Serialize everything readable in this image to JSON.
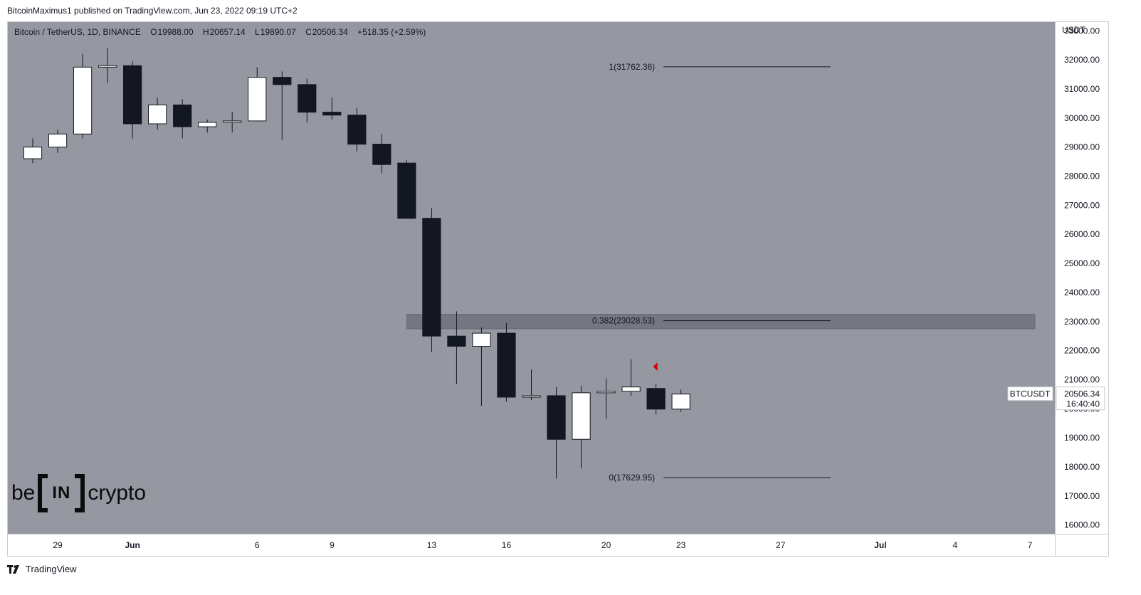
{
  "header": {
    "published_text": "BitcoinMaximus1 published on TradingView.com, Jun 23, 2022 09:19 UTC+2"
  },
  "legend": {
    "symbol": "Bitcoin / TetherUS, 1D, BINANCE",
    "o_label": "O",
    "o_value": "19988.00",
    "h_label": "H",
    "h_value": "20657.14",
    "l_label": "L",
    "l_value": "19890.07",
    "c_label": "C",
    "c_value": "20506.34",
    "change": "+518.35 (+2.59%)"
  },
  "footer": {
    "brand": "TradingView"
  },
  "watermark": {
    "left": "be",
    "middle": "IN",
    "right": "crypto"
  },
  "colors": {
    "plot_bg": "#9598a1",
    "bull": "#ffffff",
    "bear": "#131722",
    "zone": "#6f727c",
    "marker": "#d50000"
  },
  "chart_data": {
    "type": "candlestick",
    "title": "Bitcoin / TetherUS, 1D, BINANCE",
    "currency_label": "USDT",
    "ylim": [
      15700,
      33300
    ],
    "y_ticks": [
      16000,
      17000,
      18000,
      19000,
      20000,
      21000,
      22000,
      23000,
      24000,
      25000,
      26000,
      27000,
      28000,
      29000,
      30000,
      31000,
      32000,
      33000
    ],
    "y_tick_labels": [
      "16000.00",
      "17000.00",
      "18000.00",
      "19000.00",
      "20000.00",
      "21000.00",
      "22000.00",
      "23000.00",
      "24000.00",
      "25000.00",
      "26000.00",
      "27000.00",
      "28000.00",
      "29000.00",
      "30000.00",
      "31000.00",
      "32000.00",
      "33000.00"
    ],
    "x_ticks": [
      {
        "date": "2022-05-29",
        "label": "29"
      },
      {
        "date": "2022-06-01",
        "label": "Jun"
      },
      {
        "date": "2022-06-06",
        "label": "6"
      },
      {
        "date": "2022-06-09",
        "label": "9"
      },
      {
        "date": "2022-06-13",
        "label": "13"
      },
      {
        "date": "2022-06-16",
        "label": "16"
      },
      {
        "date": "2022-06-20",
        "label": "20"
      },
      {
        "date": "2022-06-23",
        "label": "23"
      },
      {
        "date": "2022-06-27",
        "label": "27"
      },
      {
        "date": "2022-07-01",
        "label": "Jul"
      },
      {
        "date": "2022-07-04",
        "label": "4"
      },
      {
        "date": "2022-07-07",
        "label": "7"
      }
    ],
    "x_range": [
      "2022-05-27",
      "2022-07-08"
    ],
    "candles": [
      {
        "date": "2022-05-28",
        "open": 28600,
        "high": 29300,
        "low": 28450,
        "close": 29000
      },
      {
        "date": "2022-05-29",
        "open": 29000,
        "high": 29600,
        "low": 28800,
        "close": 29450
      },
      {
        "date": "2022-05-30",
        "open": 29450,
        "high": 32200,
        "low": 29300,
        "close": 31750
      },
      {
        "date": "2022-05-31",
        "open": 31750,
        "high": 32400,
        "low": 31200,
        "close": 31800
      },
      {
        "date": "2022-06-01",
        "open": 31800,
        "high": 31950,
        "low": 29300,
        "close": 29800
      },
      {
        "date": "2022-06-02",
        "open": 29800,
        "high": 30700,
        "low": 29600,
        "close": 30450
      },
      {
        "date": "2022-06-03",
        "open": 30450,
        "high": 30650,
        "low": 29300,
        "close": 29700
      },
      {
        "date": "2022-06-04",
        "open": 29700,
        "high": 29950,
        "low": 29500,
        "close": 29850
      },
      {
        "date": "2022-06-05",
        "open": 29850,
        "high": 30200,
        "low": 29500,
        "close": 29900
      },
      {
        "date": "2022-06-06",
        "open": 29900,
        "high": 31750,
        "low": 29900,
        "close": 31400
      },
      {
        "date": "2022-06-07",
        "open": 31400,
        "high": 31600,
        "low": 29250,
        "close": 31150
      },
      {
        "date": "2022-06-08",
        "open": 31150,
        "high": 31350,
        "low": 29850,
        "close": 30200
      },
      {
        "date": "2022-06-09",
        "open": 30200,
        "high": 30700,
        "low": 29950,
        "close": 30100
      },
      {
        "date": "2022-06-10",
        "open": 30100,
        "high": 30350,
        "low": 28850,
        "close": 29100
      },
      {
        "date": "2022-06-11",
        "open": 29100,
        "high": 29450,
        "low": 28100,
        "close": 28400
      },
      {
        "date": "2022-06-12",
        "open": 28450,
        "high": 28550,
        "low": 26550,
        "close": 26550
      },
      {
        "date": "2022-06-13",
        "open": 26550,
        "high": 26900,
        "low": 21950,
        "close": 22500
      },
      {
        "date": "2022-06-14",
        "open": 22500,
        "high": 23350,
        "low": 20850,
        "close": 22150
      },
      {
        "date": "2022-06-15",
        "open": 22150,
        "high": 22800,
        "low": 20100,
        "close": 22600
      },
      {
        "date": "2022-06-16",
        "open": 22600,
        "high": 22950,
        "low": 20250,
        "close": 20400
      },
      {
        "date": "2022-06-17",
        "open": 20400,
        "high": 21350,
        "low": 20300,
        "close": 20450
      },
      {
        "date": "2022-06-18",
        "open": 20450,
        "high": 20750,
        "low": 17600,
        "close": 18950
      },
      {
        "date": "2022-06-19",
        "open": 18950,
        "high": 20800,
        "low": 17950,
        "close": 20550
      },
      {
        "date": "2022-06-20",
        "open": 20550,
        "high": 21050,
        "low": 19650,
        "close": 20600
      },
      {
        "date": "2022-06-21",
        "open": 20600,
        "high": 21700,
        "low": 20450,
        "close": 20750
      },
      {
        "date": "2022-06-22",
        "open": 20700,
        "high": 20850,
        "low": 19800,
        "close": 19988
      },
      {
        "date": "2022-06-23",
        "open": 19988.0,
        "high": 20657.14,
        "low": 19890.07,
        "close": 20506.34
      }
    ],
    "fib_levels": [
      {
        "ratio": "1",
        "price": 31762.36,
        "label": "1(31762.36)"
      },
      {
        "ratio": "0.382",
        "price": 23028.53,
        "label": "0.382(23028.53)"
      },
      {
        "ratio": "0",
        "price": 17629.95,
        "label": "0(17629.95)"
      }
    ],
    "fib_line_range": [
      "2022-06-22",
      "2022-06-29"
    ],
    "resistance_zone": {
      "start": "2022-06-12",
      "end": "2022-07-07",
      "low": 22750,
      "high": 23250
    },
    "marker": {
      "date": "2022-06-21",
      "price": 21450,
      "shape": "left-triangle",
      "color": "#d50000"
    },
    "price_label": {
      "symbol": "BTCUSDT",
      "price": "20506.34",
      "countdown": "16:40:40",
      "value": 20506.34
    }
  }
}
